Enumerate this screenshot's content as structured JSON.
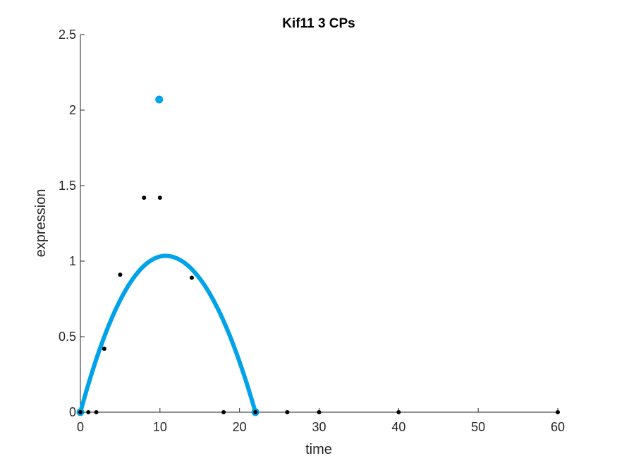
{
  "chart_data": {
    "type": "scatter",
    "title": "Kif11 3 CPs",
    "xlabel": "time",
    "ylabel": "expression",
    "xlim": [
      0,
      60
    ],
    "ylim": [
      0,
      2.5
    ],
    "x_ticks": [
      0,
      10,
      20,
      30,
      40,
      50,
      60
    ],
    "y_ticks": [
      0,
      0.5,
      1,
      1.5,
      2,
      2.5
    ],
    "x_tick_labels": [
      "0",
      "10",
      "20",
      "30",
      "40",
      "50",
      "60"
    ],
    "y_tick_labels": [
      "0",
      "0.5",
      "1",
      "1.5",
      "2",
      "2.5"
    ],
    "grid": false,
    "legend": "none",
    "series": [
      {
        "kind": "points",
        "color": "#000000",
        "x": [
          0,
          1,
          2,
          3,
          5,
          8,
          10,
          14,
          18,
          22,
          26,
          30,
          40,
          60
        ],
        "y": [
          0,
          0,
          0,
          0.42,
          0.91,
          1.42,
          1.42,
          0.89,
          0,
          0,
          0,
          0,
          0,
          0
        ]
      },
      {
        "kind": "change-points",
        "color": "#00A2E8",
        "x": [
          0,
          9.9,
          22
        ],
        "y": [
          0,
          2.07,
          0
        ]
      },
      {
        "kind": "fit-curve",
        "color": "#00A2E8",
        "peak_x": 10.7,
        "peak_y": 1.035,
        "x": [
          0,
          22
        ]
      }
    ]
  }
}
